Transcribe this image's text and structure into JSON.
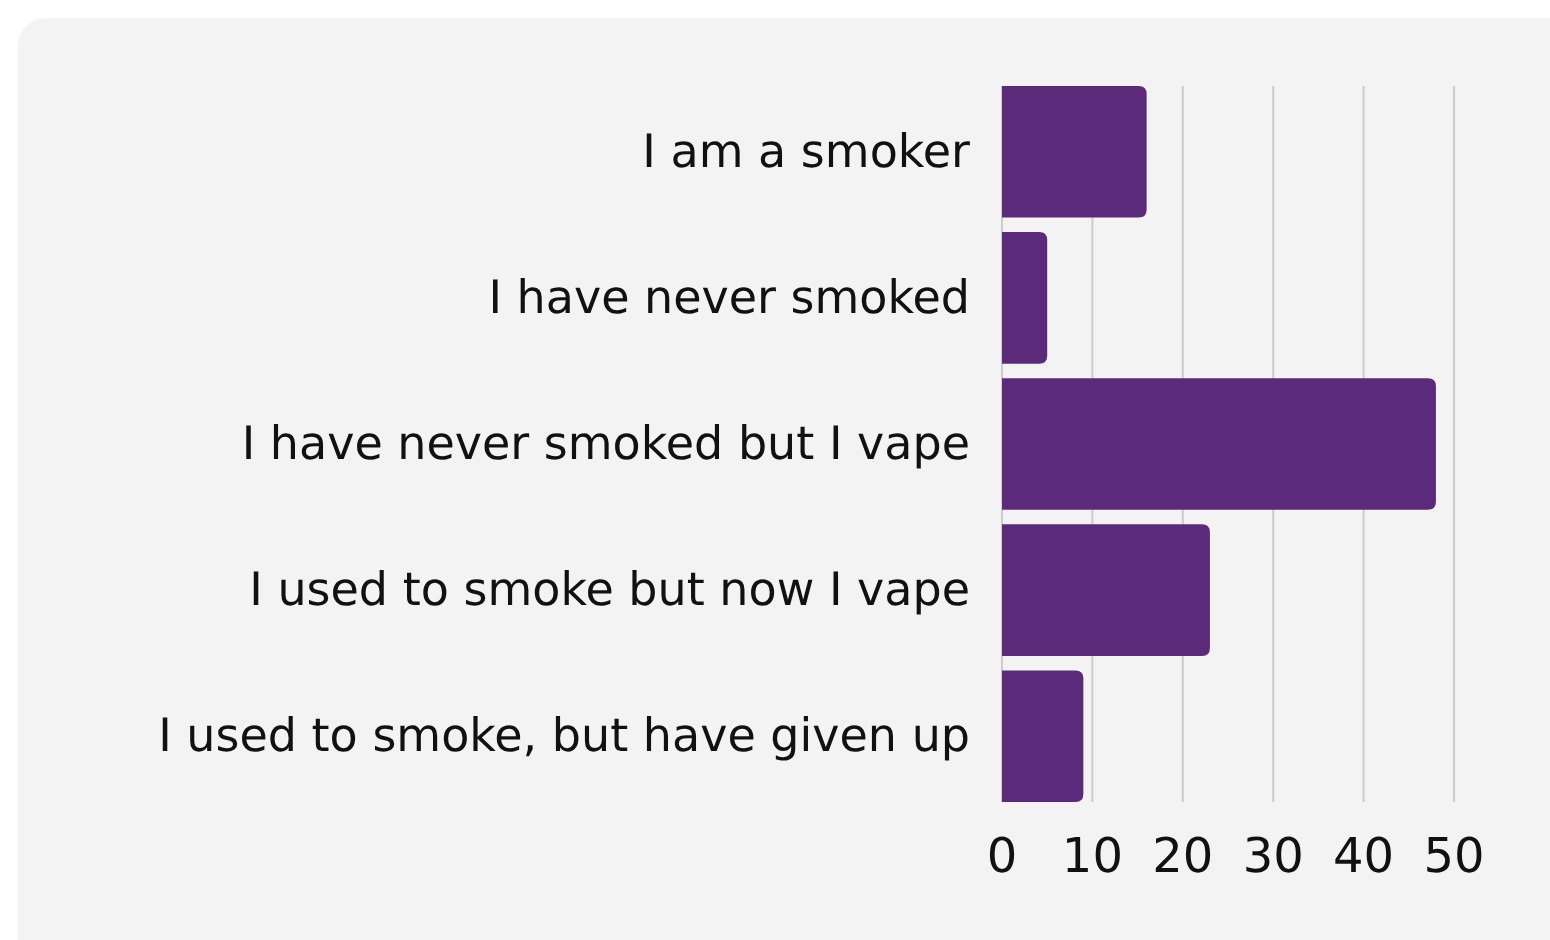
{
  "chart_data": {
    "type": "bar",
    "orientation": "horizontal",
    "categories": [
      "I am a smoker",
      "I have never smoked",
      "I have never smoked but I vape",
      "I used to smoke but now I vape",
      "I used to smoke, but have given up"
    ],
    "values": [
      16,
      5,
      48,
      23,
      9
    ],
    "color": "#5c2a7a",
    "xlim": [
      0,
      50
    ],
    "xticks": [
      0,
      10,
      20,
      30,
      40,
      50
    ],
    "grid": "x"
  }
}
